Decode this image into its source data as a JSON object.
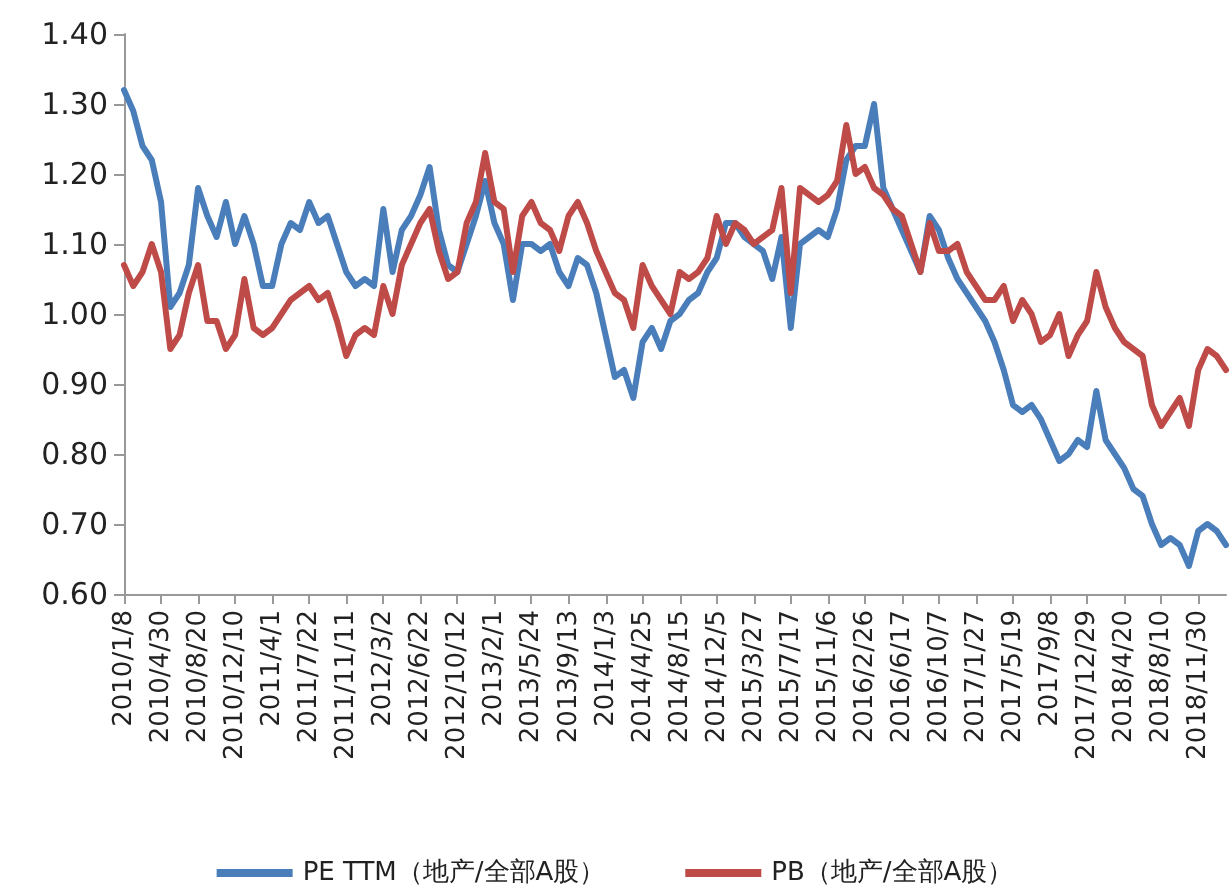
{
  "chart_data": {
    "type": "line",
    "x": [
      "2010-01-08",
      "2010-02-05",
      "2010-03-05",
      "2010-04-02",
      "2010-04-30",
      "2010-05-28",
      "2010-06-25",
      "2010-07-23",
      "2010-08-20",
      "2010-09-17",
      "2010-10-15",
      "2010-11-12",
      "2010-12-10",
      "2011-01-07",
      "2011-02-04",
      "2011-03-04",
      "2011-04-01",
      "2011-04-29",
      "2011-05-27",
      "2011-06-24",
      "2011-07-22",
      "2011-08-19",
      "2011-09-16",
      "2011-10-14",
      "2011-11-11",
      "2011-12-09",
      "2012-01-06",
      "2012-02-03",
      "2012-03-02",
      "2012-03-30",
      "2012-04-27",
      "2012-05-25",
      "2012-06-22",
      "2012-07-20",
      "2012-08-17",
      "2012-09-14",
      "2012-10-12",
      "2012-11-09",
      "2012-12-07",
      "2013-01-04",
      "2013-02-01",
      "2013-03-01",
      "2013-03-29",
      "2013-04-26",
      "2013-05-24",
      "2013-06-21",
      "2013-07-19",
      "2013-08-16",
      "2013-09-13",
      "2013-10-11",
      "2013-11-08",
      "2013-12-06",
      "2014-01-03",
      "2014-01-31",
      "2014-02-28",
      "2014-03-28",
      "2014-04-25",
      "2014-05-23",
      "2014-06-20",
      "2014-07-18",
      "2014-08-15",
      "2014-09-12",
      "2014-10-10",
      "2014-11-07",
      "2014-12-05",
      "2015-01-02",
      "2015-01-30",
      "2015-02-27",
      "2015-03-27",
      "2015-04-24",
      "2015-05-22",
      "2015-06-19",
      "2015-07-17",
      "2015-08-14",
      "2015-09-11",
      "2015-10-09",
      "2015-11-06",
      "2015-12-04",
      "2016-01-01",
      "2016-01-29",
      "2016-02-26",
      "2016-03-25",
      "2016-04-22",
      "2016-05-20",
      "2016-06-17",
      "2016-07-15",
      "2016-08-12",
      "2016-09-09",
      "2016-10-07",
      "2016-11-04",
      "2016-12-02",
      "2016-12-30",
      "2017-01-27",
      "2017-02-24",
      "2017-03-24",
      "2017-04-21",
      "2017-05-19",
      "2017-06-16",
      "2017-07-14",
      "2017-08-11",
      "2017-09-08",
      "2017-10-06",
      "2017-11-03",
      "2017-12-01",
      "2017-12-29",
      "2018-01-26",
      "2018-02-23",
      "2018-03-23",
      "2018-04-20",
      "2018-05-18",
      "2018-06-15",
      "2018-07-13",
      "2018-08-10",
      "2018-09-07",
      "2018-10-05",
      "2018-11-02",
      "2018-11-30",
      "2018-12-28",
      "2019-01-25",
      "2019-02-22"
    ],
    "series": [
      {
        "name": "PE TTM（地产/全部A股）",
        "color": "#4a7ebb",
        "values": [
          1.32,
          1.29,
          1.24,
          1.22,
          1.16,
          1.01,
          1.03,
          1.07,
          1.18,
          1.14,
          1.11,
          1.16,
          1.1,
          1.14,
          1.1,
          1.04,
          1.04,
          1.1,
          1.13,
          1.12,
          1.16,
          1.13,
          1.14,
          1.1,
          1.06,
          1.04,
          1.05,
          1.04,
          1.15,
          1.06,
          1.12,
          1.14,
          1.17,
          1.21,
          1.12,
          1.07,
          1.06,
          1.1,
          1.14,
          1.19,
          1.13,
          1.1,
          1.02,
          1.1,
          1.1,
          1.09,
          1.1,
          1.06,
          1.04,
          1.08,
          1.07,
          1.03,
          0.97,
          0.91,
          0.92,
          0.88,
          0.96,
          0.98,
          0.95,
          0.99,
          1.0,
          1.02,
          1.03,
          1.06,
          1.08,
          1.13,
          1.13,
          1.11,
          1.1,
          1.09,
          1.05,
          1.11,
          0.98,
          1.1,
          1.11,
          1.12,
          1.11,
          1.15,
          1.22,
          1.24,
          1.24,
          1.3,
          1.18,
          1.15,
          1.12,
          1.09,
          1.06,
          1.14,
          1.12,
          1.08,
          1.05,
          1.03,
          1.01,
          0.99,
          0.96,
          0.92,
          0.87,
          0.86,
          0.87,
          0.85,
          0.82,
          0.79,
          0.8,
          0.82,
          0.81,
          0.89,
          0.82,
          0.8,
          0.78,
          0.75,
          0.74,
          0.7,
          0.67,
          0.68,
          0.67,
          0.64,
          0.69,
          0.7,
          0.69,
          0.67
        ]
      },
      {
        "name": "PB（地产/全部A股）",
        "color": "#be4b48",
        "values": [
          1.07,
          1.04,
          1.06,
          1.1,
          1.06,
          0.95,
          0.97,
          1.03,
          1.07,
          0.99,
          0.99,
          0.95,
          0.97,
          1.05,
          0.98,
          0.97,
          0.98,
          1.0,
          1.02,
          1.03,
          1.04,
          1.02,
          1.03,
          0.99,
          0.94,
          0.97,
          0.98,
          0.97,
          1.04,
          1.0,
          1.07,
          1.1,
          1.13,
          1.15,
          1.09,
          1.05,
          1.06,
          1.13,
          1.16,
          1.23,
          1.16,
          1.15,
          1.06,
          1.14,
          1.16,
          1.13,
          1.12,
          1.09,
          1.14,
          1.16,
          1.13,
          1.09,
          1.06,
          1.03,
          1.02,
          0.98,
          1.07,
          1.04,
          1.02,
          1.0,
          1.06,
          1.05,
          1.06,
          1.08,
          1.14,
          1.1,
          1.13,
          1.12,
          1.1,
          1.11,
          1.12,
          1.18,
          1.03,
          1.18,
          1.17,
          1.16,
          1.17,
          1.19,
          1.27,
          1.2,
          1.21,
          1.18,
          1.17,
          1.15,
          1.14,
          1.1,
          1.06,
          1.13,
          1.09,
          1.09,
          1.1,
          1.06,
          1.04,
          1.02,
          1.02,
          1.04,
          0.99,
          1.02,
          1.0,
          0.96,
          0.97,
          1.0,
          0.94,
          0.97,
          0.99,
          1.06,
          1.01,
          0.98,
          0.96,
          0.95,
          0.94,
          0.87,
          0.84,
          0.86,
          0.88,
          0.84,
          0.92,
          0.95,
          0.94,
          0.92
        ]
      }
    ],
    "xlim": [
      "2010-01-08",
      "2019-02-22"
    ],
    "xticks": [
      {
        "value": "2010-01-08",
        "label": "2010/1/8"
      },
      {
        "value": "2010-04-30",
        "label": "2010/4/30"
      },
      {
        "value": "2010-08-20",
        "label": "2010/8/20"
      },
      {
        "value": "2010-12-10",
        "label": "2010/12/10"
      },
      {
        "value": "2011-04-01",
        "label": "2011/4/1"
      },
      {
        "value": "2011-07-22",
        "label": "2011/7/22"
      },
      {
        "value": "2011-11-11",
        "label": "2011/11/11"
      },
      {
        "value": "2012-03-02",
        "label": "2012/3/2"
      },
      {
        "value": "2012-06-22",
        "label": "2012/6/22"
      },
      {
        "value": "2012-10-12",
        "label": "2012/10/12"
      },
      {
        "value": "2013-02-01",
        "label": "2013/2/1"
      },
      {
        "value": "2013-05-24",
        "label": "2013/5/24"
      },
      {
        "value": "2013-09-13",
        "label": "2013/9/13"
      },
      {
        "value": "2014-01-03",
        "label": "2014/1/3"
      },
      {
        "value": "2014-04-25",
        "label": "2014/4/25"
      },
      {
        "value": "2014-08-15",
        "label": "2014/8/15"
      },
      {
        "value": "2014-12-05",
        "label": "2014/12/5"
      },
      {
        "value": "2015-03-27",
        "label": "2015/3/27"
      },
      {
        "value": "2015-07-17",
        "label": "2015/7/17"
      },
      {
        "value": "2015-11-06",
        "label": "2015/11/6"
      },
      {
        "value": "2016-02-26",
        "label": "2016/2/26"
      },
      {
        "value": "2016-06-17",
        "label": "2016/6/17"
      },
      {
        "value": "2016-10-07",
        "label": "2016/10/7"
      },
      {
        "value": "2017-01-27",
        "label": "2017/1/27"
      },
      {
        "value": "2017-05-19",
        "label": "2017/5/19"
      },
      {
        "value": "2017-09-08",
        "label": "2017/9/8"
      },
      {
        "value": "2017-12-29",
        "label": "2017/12/29"
      },
      {
        "value": "2018-04-20",
        "label": "2018/4/20"
      },
      {
        "value": "2018-08-10",
        "label": "2018/8/10"
      },
      {
        "value": "2018-11-30",
        "label": "2018/11/30"
      }
    ],
    "ylim": [
      0.6,
      1.4
    ],
    "yticks": [
      {
        "value": 0.6,
        "label": "0.60"
      },
      {
        "value": 0.7,
        "label": "0.70"
      },
      {
        "value": 0.8,
        "label": "0.80"
      },
      {
        "value": 0.9,
        "label": "0.90"
      },
      {
        "value": 1.0,
        "label": "1.00"
      },
      {
        "value": 1.1,
        "label": "1.10"
      },
      {
        "value": 1.2,
        "label": "1.20"
      },
      {
        "value": 1.3,
        "label": "1.30"
      },
      {
        "value": 1.4,
        "label": "1.40"
      }
    ],
    "grid": false,
    "legend": "bottom",
    "marker": "none",
    "line_style": "solid"
  }
}
